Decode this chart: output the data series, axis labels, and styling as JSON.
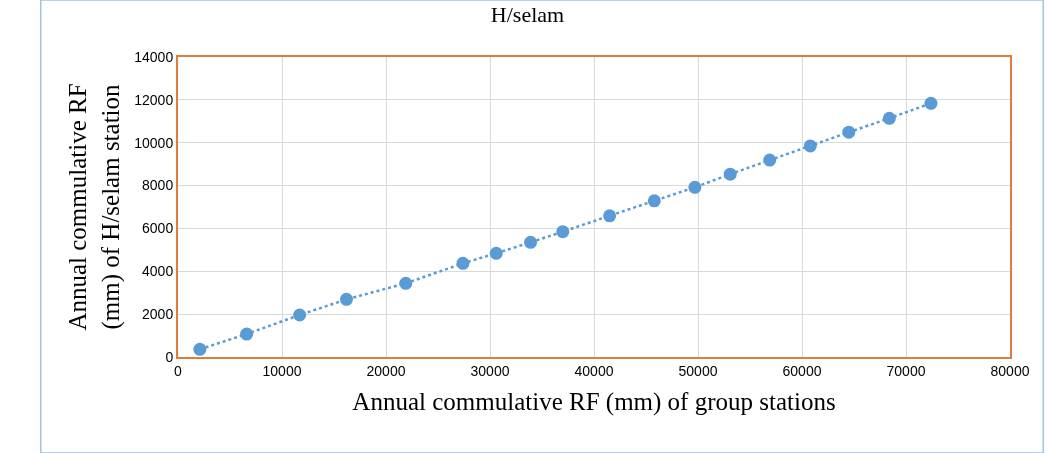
{
  "chart_data": {
    "type": "scatter",
    "title": "H/selam",
    "xlabel": "Annual commulative RF (mm) of group stations",
    "ylabel": "Annual commulative RF\n(mm) of H/selam station",
    "x": [
      2100,
      6600,
      11700,
      16200,
      21900,
      27400,
      30600,
      33900,
      37000,
      41500,
      45800,
      49700,
      53100,
      56900,
      60800,
      64500,
      68400,
      72400
    ],
    "series": [
      {
        "type": "line",
        "line_style": "dotted",
        "color": "#5b9bd5",
        "values": [
          360,
          1070,
          1960,
          2690,
          3440,
          4370,
          4840,
          5350,
          5850,
          6590,
          7290,
          7920,
          8530,
          9190,
          9850,
          10490,
          11140,
          11840
        ]
      },
      {
        "marker": "circle",
        "color": "#5b9bd5",
        "values": [
          360,
          1070,
          1960,
          2690,
          3440,
          4370,
          4840,
          5350,
          5850,
          6590,
          7290,
          7920,
          8530,
          9190,
          9850,
          10490,
          11140,
          11840
        ]
      }
    ],
    "xlim": [
      0,
      80000
    ],
    "xticks": [
      0,
      10000,
      20000,
      30000,
      40000,
      50000,
      60000,
      70000,
      80000
    ],
    "ylim": [
      0,
      14000
    ],
    "yticks": [
      0,
      2000,
      4000,
      6000,
      8000,
      10000,
      12000,
      14000
    ],
    "grid": true
  }
}
